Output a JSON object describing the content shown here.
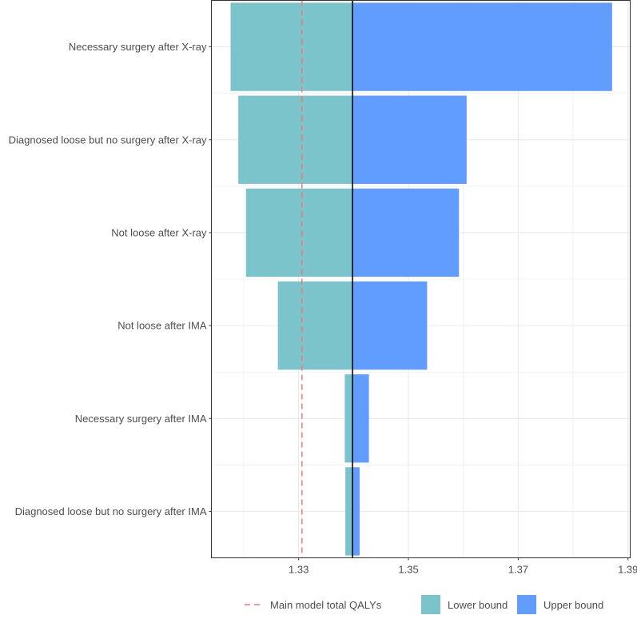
{
  "chart_data": {
    "type": "bar",
    "orientation": "horizontal",
    "subtype": "tornado",
    "title": "",
    "xlabel": "",
    "ylabel": "",
    "xlim": [
      1.3141,
      1.3904
    ],
    "x_ticks": [
      1.33,
      1.35,
      1.37,
      1.39
    ],
    "x_tick_labels": [
      "1.33",
      "1.35",
      "1.37",
      "1.39"
    ],
    "grid": true,
    "base_value": 1.3398,
    "reference_line": {
      "label": "Main model total QALYs",
      "value": 1.3306,
      "color": "#f8766d",
      "style": "dashed"
    },
    "categories": [
      "Necessary surgery after X-ray",
      "Diagnosed loose but no surgery after X-ray",
      "Not loose after X-ray",
      "Not loose after IMA",
      "Necessary surgery after IMA",
      "Diagnosed loose but no surgery after IMA"
    ],
    "series": [
      {
        "name": "Lower bound",
        "color": "#7cc4cc",
        "values": [
          1.3176,
          1.319,
          1.3204,
          1.3262,
          1.3384,
          1.3385
        ]
      },
      {
        "name": "Upper bound",
        "color": "#619cff",
        "values": [
          1.3871,
          1.3606,
          1.3592,
          1.3534,
          1.3428,
          1.3411
        ]
      }
    ],
    "legend": {
      "placement": "bottom",
      "items": [
        "Main model total QALYs",
        "Lower bound",
        "Upper bound"
      ]
    }
  }
}
